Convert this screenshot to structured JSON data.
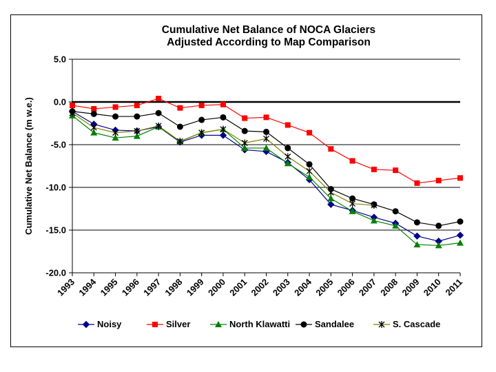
{
  "chart_data": {
    "type": "line",
    "title": [
      "Cumulative Net Balance of NOCA Glaciers",
      "Adjusted According to Map Comparison"
    ],
    "xlabel": "",
    "ylabel": "Cumulative Net Balance (m w.e.)",
    "ylim": [
      -20,
      5
    ],
    "yticks": [
      5,
      0,
      -5,
      -10,
      -15,
      -20
    ],
    "ytick_labels": [
      "5.0",
      "0.0",
      "-5.0",
      "-10.0",
      "-15.0",
      "-20.0"
    ],
    "categories": [
      "1993",
      "1994",
      "1995",
      "1996",
      "1997",
      "1998",
      "1999",
      "2000",
      "2001",
      "2002",
      "2003",
      "2004",
      "2005",
      "2006",
      "2007",
      "2008",
      "2009",
      "2010",
      "2011"
    ],
    "grid": "horizontal major lines",
    "legend_position": "bottom",
    "series": [
      {
        "name": "Noisy",
        "color": "#00008B",
        "marker": "diamond",
        "values": [
          -1.1,
          -2.6,
          -3.3,
          -3.4,
          -2.9,
          -4.7,
          -3.9,
          -3.9,
          -5.6,
          -5.8,
          -7.1,
          -9.1,
          -12.0,
          -12.7,
          -13.5,
          -14.2,
          -15.7,
          -16.3,
          -15.6
        ]
      },
      {
        "name": "Silver",
        "color": "#FF0000",
        "marker": "square",
        "values": [
          -0.4,
          -0.8,
          -0.6,
          -0.4,
          0.4,
          -0.7,
          -0.4,
          -0.3,
          -1.9,
          -1.8,
          -2.7,
          -3.6,
          -5.5,
          -6.9,
          -7.9,
          -8.0,
          -9.5,
          -9.2,
          -8.9
        ]
      },
      {
        "name": "North Klawatti",
        "color": "#008000",
        "marker": "triangle",
        "values": [
          -1.6,
          -3.6,
          -4.2,
          -4.0,
          -2.9,
          -4.6,
          -3.6,
          -3.2,
          -5.4,
          -5.4,
          -7.2,
          -8.8,
          -11.3,
          -12.8,
          -13.9,
          -14.5,
          -16.7,
          -16.8,
          -16.5
        ]
      },
      {
        "name": "Sandalee",
        "color": "#000000",
        "marker": "circle",
        "values": [
          -1.1,
          -1.4,
          -1.7,
          -1.7,
          -1.3,
          -2.9,
          -2.1,
          -1.8,
          -3.4,
          -3.5,
          -5.4,
          -7.3,
          -10.2,
          -11.3,
          -12.0,
          -12.8,
          -14.1,
          -14.5,
          -14.0
        ]
      },
      {
        "name": "S. Cascade",
        "color": "#808000",
        "marker": "star",
        "values": [
          -1.3,
          -3.0,
          -3.6,
          -3.4,
          -2.8,
          -4.6,
          -3.6,
          -3.2,
          -4.8,
          -4.3,
          -6.4,
          -8.1,
          -10.6,
          -11.9,
          -12.1,
          null,
          null,
          null,
          null
        ]
      }
    ]
  }
}
